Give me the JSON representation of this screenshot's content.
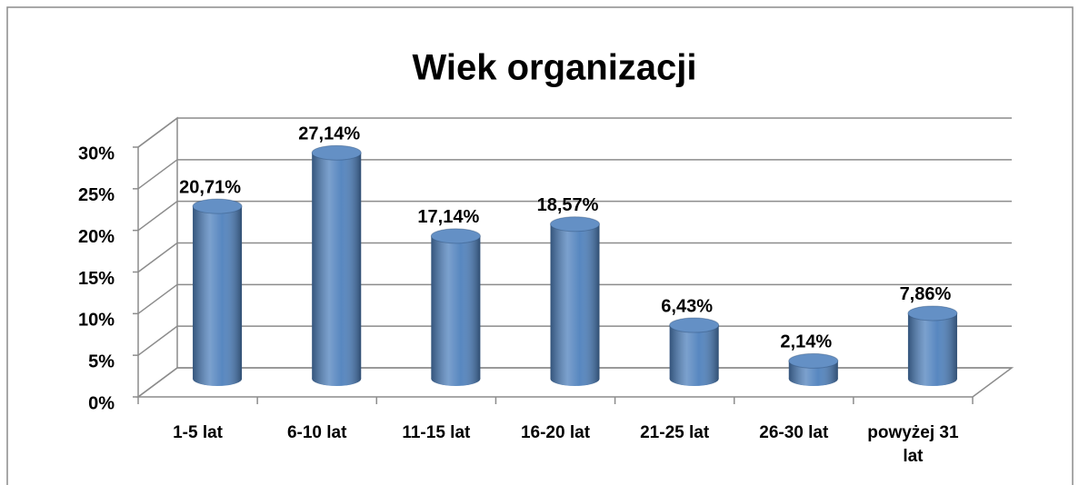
{
  "chart_data": {
    "type": "bar3d",
    "title": "Wiek organizacji",
    "categories": [
      "1-5 lat",
      "6-10 lat",
      "11-15 lat",
      "16-20 lat",
      "21-25 lat",
      "26-30 lat",
      "powyżej 31 lat"
    ],
    "values": [
      20.71,
      27.14,
      17.14,
      18.57,
      6.43,
      2.14,
      7.86
    ],
    "value_labels": [
      "20,71%",
      "27,14%",
      "17,14%",
      "18,57%",
      "6,43%",
      "2,14%",
      "7,86%"
    ],
    "color": "#4f81bd",
    "ylim": [
      0,
      30
    ],
    "yticks": [
      {
        "value": 0,
        "label": "0%"
      },
      {
        "value": 5,
        "label": "5%"
      },
      {
        "value": 10,
        "label": "10%"
      },
      {
        "value": 15,
        "label": "15%"
      },
      {
        "value": 20,
        "label": "20%"
      },
      {
        "value": 25,
        "label": "25%"
      },
      {
        "value": 30,
        "label": "30%"
      }
    ],
    "grid": true
  }
}
